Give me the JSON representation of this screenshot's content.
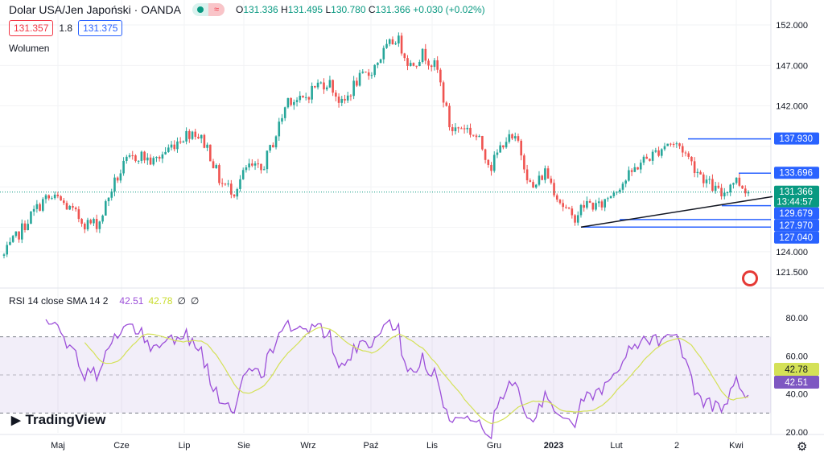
{
  "header": {
    "title": "Dolar USA/Jen Japoński · OANDA",
    "market_status": "≈",
    "open_label": "O",
    "open": "131.336",
    "high_label": "H",
    "high": "131.495",
    "low_label": "L",
    "low": "130.780",
    "close_label": "C",
    "close": "131.366",
    "change": "+0.030 (+0.02%)"
  },
  "bidask": {
    "bid": "131.357",
    "spread": "1.8",
    "ask": "131.375"
  },
  "volume_label": "Wolumen",
  "rsi_legend": {
    "name": "RSI 14 close SMA 14 2",
    "rsi": "42.51",
    "sma": "42.78",
    "e1": "∅",
    "e2": "∅"
  },
  "logo": "TradingView",
  "colors": {
    "up": "#26a69a",
    "down": "#ef5350",
    "line": "#2962ff",
    "rsi": "#9c4fd9",
    "sma": "#d4e157",
    "last": "#089981"
  },
  "chart_data": {
    "type": "candlestick",
    "symbol": "USDJPY",
    "price_axis": {
      "range": [
        121.5,
        152
      ],
      "ticks": [
        "152.000",
        "147.000",
        "142.000",
        "124.000",
        "121.500"
      ]
    },
    "x_ticks": [
      "Maj",
      "Cze",
      "Lip",
      "Sie",
      "Wrz",
      "Paź",
      "Lis",
      "Gru",
      "2023",
      "Lut",
      "2",
      "Kwi"
    ],
    "approx_close_path": [
      123.5,
      126,
      128.5,
      130.5,
      130.5,
      129,
      127.5,
      127.5,
      132,
      135,
      136,
      135,
      136.5,
      138,
      139,
      137,
      132.5,
      131.5,
      134.5,
      134,
      138,
      143,
      142.5,
      144.5,
      145,
      142,
      145,
      146,
      148.5,
      150.5,
      147,
      148.5,
      146.5,
      139,
      139.5,
      138,
      134.5,
      138,
      137.5,
      131.5,
      134,
      130.5,
      128,
      130,
      129.5,
      131.5,
      133,
      135,
      136,
      137.5,
      137,
      134.5,
      132.5,
      131,
      133,
      131.4
    ],
    "price_labels": [
      {
        "value": "137.930",
        "kind": "line"
      },
      {
        "value": "133.696",
        "kind": "line"
      },
      {
        "value": "131.366",
        "kind": "last",
        "countdown": "13:44:57"
      },
      {
        "value": "129.679",
        "kind": "line"
      },
      {
        "value": "127.970",
        "kind": "line"
      },
      {
        "value": "127.040",
        "kind": "line"
      }
    ],
    "hlines": [
      137.93,
      133.696,
      129.679,
      127.97,
      127.04
    ],
    "trendline": [
      127.04,
      130.8
    ],
    "rsi": {
      "range": [
        20,
        80
      ],
      "ticks": [
        "80.00",
        "60.00",
        "40.00",
        "20.00"
      ],
      "bands": [
        70,
        30
      ],
      "last_rsi": "42.51",
      "last_sma": "42.78"
    }
  }
}
